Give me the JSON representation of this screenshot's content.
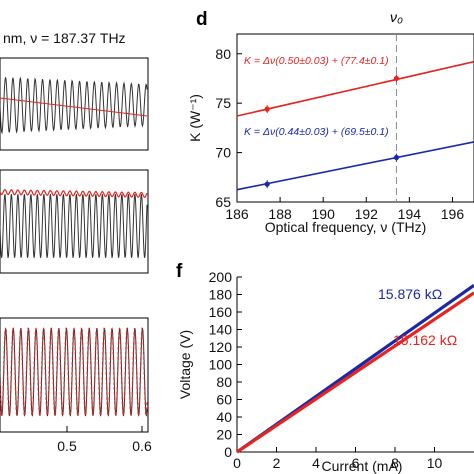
{
  "panel_labels": {
    "d": "d",
    "f": "f"
  },
  "left_panel": {
    "top_label": "nm, ν = 187.37 THz",
    "xticks": [
      "0.5",
      "0.6"
    ]
  },
  "chart_data": [
    {
      "id": "d",
      "type": "scatter",
      "xlabel": "Optical frequency, ν (THz)",
      "ylabel": "K (W⁻¹)",
      "xlim": [
        186,
        197
      ],
      "ylim": [
        65,
        82
      ],
      "xticks": [
        "186",
        "188",
        "190",
        "192",
        "194",
        "196"
      ],
      "yticks": [
        "65",
        "70",
        "75",
        "80"
      ],
      "grid": false,
      "annotation_top": "ν₀",
      "vline_x": 193.4,
      "series": [
        {
          "color": "#e52421",
          "equation": "K = Δν(0.50±0.03) + (77.4±0.1)",
          "points": [
            {
              "x": 187.4,
              "y": 74.4
            },
            {
              "x": 193.4,
              "y": 77.5
            }
          ],
          "fit": {
            "slope": 0.5,
            "intercept_at_vline": 77.4
          }
        },
        {
          "color": "#1a28a8",
          "equation": "K = Δν(0.44±0.03) + (69.5±0.1)",
          "points": [
            {
              "x": 187.4,
              "y": 66.8
            },
            {
              "x": 193.4,
              "y": 69.5
            }
          ],
          "fit": {
            "slope": 0.44,
            "intercept_at_vline": 69.5
          }
        }
      ]
    },
    {
      "id": "f",
      "type": "line",
      "xlabel": "Current (mA)",
      "ylabel": "Voltage (V)",
      "xlim": [
        0,
        12
      ],
      "ylim": [
        0,
        200
      ],
      "xticks": [
        "0",
        "2",
        "4",
        "6",
        "8",
        "10"
      ],
      "yticks": [
        "0",
        "20",
        "40",
        "60",
        "80",
        "100",
        "120",
        "140",
        "160",
        "180",
        "200"
      ],
      "grid": false,
      "series": [
        {
          "label": "15.876 kΩ",
          "color": "#1a28a8",
          "slope_kohm": 15.876,
          "x": [
            0,
            12
          ]
        },
        {
          "label": "15.162 kΩ",
          "color": "#e52421",
          "slope_kohm": 15.162,
          "x": [
            0,
            12
          ]
        }
      ]
    }
  ]
}
